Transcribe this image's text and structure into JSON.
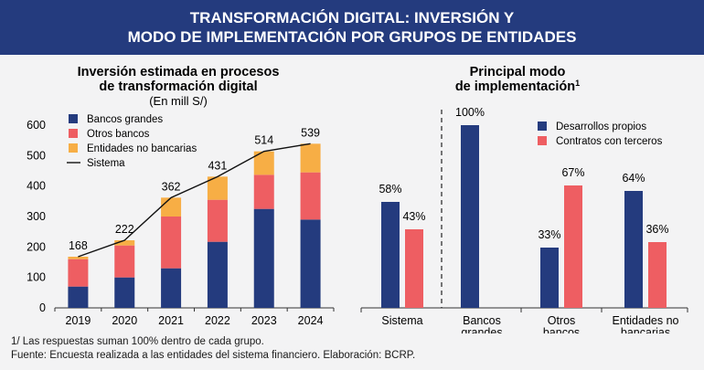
{
  "banner": {
    "line1": "TRANSFORMACIÓN DIGITAL: INVERSIÓN Y",
    "line2": "MODO DE IMPLEMENTACIÓN POR GRUPOS DE ENTIDADES"
  },
  "left_chart": {
    "title_line1": "Inversión estimada en procesos",
    "title_line2": "de transformación digital",
    "subtitle": "(En mill S/)"
  },
  "right_chart": {
    "title_line1": "Principal modo",
    "title_line2": "de implementación",
    "title_sup": "1"
  },
  "colors": {
    "navy": "#243b7e",
    "red": "#ee5e62",
    "orange": "#f7ae45",
    "line": "#111111",
    "banner": "#243b7e",
    "background": "#f3f3f4"
  },
  "chart_data": [
    {
      "type": "bar",
      "stacked": true,
      "title": "Inversión estimada en procesos de transformación digital",
      "subtitle": "(En mill S/)",
      "categories": [
        "2019",
        "2020",
        "2021",
        "2022",
        "2023",
        "2024"
      ],
      "series": [
        {
          "name": "Bancos grandes",
          "color": "#243b7e",
          "values": [
            70,
            100,
            130,
            217,
            325,
            290
          ]
        },
        {
          "name": "Otros bancos",
          "color": "#ee5e62",
          "values": [
            90,
            105,
            170,
            138,
            112,
            155
          ]
        },
        {
          "name": "Entidades no bancarias",
          "color": "#f7ae45",
          "values": [
            8,
            17,
            62,
            76,
            77,
            94
          ]
        }
      ],
      "line_series": {
        "name": "Sistema",
        "color": "#111111",
        "values": [
          168,
          222,
          362,
          431,
          514,
          539
        ]
      },
      "data_labels": [
        "168",
        "222",
        "362",
        "431",
        "514",
        "539"
      ],
      "yticks": [
        0,
        100,
        200,
        300,
        400,
        500,
        600
      ],
      "ylim": [
        0,
        600
      ],
      "legend_position": "top-left"
    },
    {
      "type": "bar",
      "title": "Principal modo de implementación",
      "categories": [
        "Sistema",
        "Bancos grandes",
        "Otros bancos",
        "Entidades no bancarias"
      ],
      "category_lines": [
        [
          "Sistema"
        ],
        [
          "Bancos",
          "grandes"
        ],
        [
          "Otros",
          "bancos"
        ],
        [
          "Entidades no",
          "bancarias"
        ]
      ],
      "series": [
        {
          "name": "Desarrollos propios",
          "color": "#243b7e",
          "values": [
            58,
            100,
            33,
            64
          ],
          "labels": [
            "58%",
            "100%",
            "33%",
            "64%"
          ]
        },
        {
          "name": "Contratos con terceros",
          "color": "#ee5e62",
          "values": [
            43,
            0,
            67,
            36
          ],
          "labels": [
            "43%",
            "",
            "67%",
            "36%"
          ]
        }
      ],
      "ylim": [
        0,
        100
      ],
      "legend_position": "top-right"
    }
  ],
  "footnotes": {
    "note1": "1/ Las respuestas suman 100% dentro de cada grupo.",
    "source": "Fuente: Encuesta realizada a las entidades del sistema financiero. Elaboración: BCRP."
  }
}
